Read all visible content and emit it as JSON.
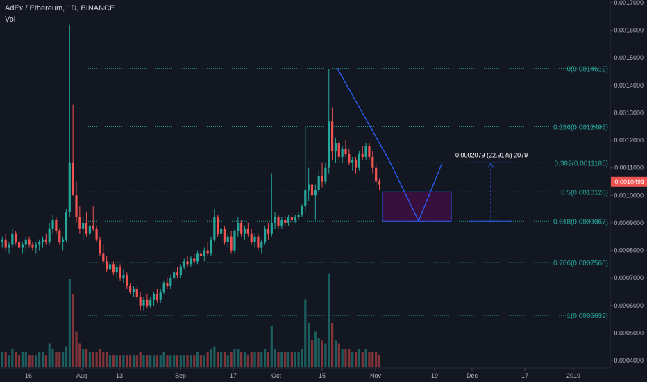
{
  "header": {
    "title": "AdEx / Ethereum, 1D, BINANCE",
    "volume_label": "Vol"
  },
  "colors": {
    "background": "#131722",
    "up": "#26a69a",
    "down": "#ef5350",
    "fib": "#26a69a",
    "pattern": "#2962ff",
    "zone_fill": "#3a1040",
    "last_price_bg": "#ef5350",
    "axis_text": "#b2b5be",
    "grid": "#1e222d"
  },
  "chart_data": {
    "type": "candlestick",
    "symbol": "AdEx / Ethereum",
    "interval": "1D",
    "exchange": "BINANCE",
    "y_ticks": [
      "0.0004000",
      "0.0005000",
      "0.0006000",
      "0.0007000",
      "0.0008000",
      "0.0009000",
      "0.0010000",
      "0.0011000",
      "0.0012000",
      "0.0013000",
      "0.0014000",
      "0.0015000",
      "0.0016000",
      "0.0017000"
    ],
    "ylim": [
      0.00036,
      0.00171
    ],
    "x_ticks": [
      "16",
      "Aug",
      "13",
      "Sep",
      "17",
      "Oct",
      "15",
      "Nov",
      "19",
      "Dec",
      "17",
      "2019"
    ],
    "last_price": "0.0010493",
    "fibonacci": [
      {
        "label": "0(0.0014612)",
        "value": 0.0014612
      },
      {
        "label": "0.236(0.0012495)",
        "value": 0.0012495
      },
      {
        "label": "0.382(0.0011185)",
        "value": 0.0011185
      },
      {
        "label": "0.5(0.0010126)",
        "value": 0.0010126
      },
      {
        "label": "0.618(0.0009067)",
        "value": 0.0009067
      },
      {
        "label": "0.786(0.0007560)",
        "value": 0.000756
      },
      {
        "label": "1(0.0005639)",
        "value": 0.0005639
      }
    ],
    "measure_label": "0.0002079 (22.91%) 2079",
    "candles": [
      [
        0.00083,
        0.00085,
        0.00081,
        0.00084,
        0.05
      ],
      [
        0.00084,
        0.00086,
        0.0008,
        0.00081,
        0.05
      ],
      [
        0.00081,
        0.00083,
        0.00079,
        0.00082,
        0.04
      ],
      [
        0.00082,
        0.00088,
        0.00081,
        0.00086,
        0.06
      ],
      [
        0.00086,
        0.00087,
        0.00082,
        0.00083,
        0.05
      ],
      [
        0.00083,
        0.00084,
        0.0008,
        0.00081,
        0.04
      ],
      [
        0.00081,
        0.00083,
        0.00079,
        0.00082,
        0.05
      ],
      [
        0.00082,
        0.00085,
        0.0008,
        0.00084,
        0.05
      ],
      [
        0.00084,
        0.00085,
        0.00081,
        0.00082,
        0.04
      ],
      [
        0.00082,
        0.00083,
        0.0008,
        0.00081,
        0.04
      ],
      [
        0.00081,
        0.00083,
        0.00079,
        0.00082,
        0.04
      ],
      [
        0.00082,
        0.00084,
        0.0008,
        0.00083,
        0.05
      ],
      [
        0.00083,
        0.00085,
        0.00081,
        0.00084,
        0.05
      ],
      [
        0.00084,
        0.00086,
        0.00082,
        0.00083,
        0.04
      ],
      [
        0.00083,
        0.0009,
        0.00082,
        0.00088,
        0.08
      ],
      [
        0.00088,
        0.00093,
        0.00086,
        0.00091,
        0.06
      ],
      [
        0.00091,
        0.00092,
        0.00086,
        0.00087,
        0.05
      ],
      [
        0.00087,
        0.00088,
        0.00082,
        0.00083,
        0.05
      ],
      [
        0.00083,
        0.00085,
        0.0008,
        0.00084,
        0.05
      ],
      [
        0.00084,
        0.00095,
        0.00083,
        0.00094,
        0.07
      ],
      [
        0.00094,
        0.00162,
        0.00092,
        0.00112,
        0.3
      ],
      [
        0.00112,
        0.00133,
        0.001,
        0.001,
        0.25
      ],
      [
        0.001,
        0.00105,
        0.0009,
        0.00092,
        0.12
      ],
      [
        0.00092,
        0.00096,
        0.00086,
        0.00088,
        0.08
      ],
      [
        0.00088,
        0.00092,
        0.00084,
        0.0009,
        0.06
      ],
      [
        0.0009,
        0.00094,
        0.00085,
        0.00086,
        0.06
      ],
      [
        0.00086,
        0.0009,
        0.00084,
        0.00089,
        0.05
      ],
      [
        0.00089,
        0.00096,
        0.00087,
        0.00088,
        0.05
      ],
      [
        0.00088,
        0.00089,
        0.00083,
        0.00084,
        0.05
      ],
      [
        0.00084,
        0.00085,
        0.00078,
        0.00079,
        0.06
      ],
      [
        0.00079,
        0.00082,
        0.00075,
        0.00076,
        0.05
      ],
      [
        0.00076,
        0.00078,
        0.00072,
        0.00073,
        0.05
      ],
      [
        0.00073,
        0.00077,
        0.00072,
        0.00075,
        0.04
      ],
      [
        0.00075,
        0.00076,
        0.00071,
        0.00072,
        0.04
      ],
      [
        0.00072,
        0.00075,
        0.0007,
        0.00074,
        0.04
      ],
      [
        0.00074,
        0.00075,
        0.00069,
        0.0007,
        0.04
      ],
      [
        0.0007,
        0.00073,
        0.00068,
        0.00071,
        0.04
      ],
      [
        0.00071,
        0.00072,
        0.00066,
        0.00067,
        0.04
      ],
      [
        0.00067,
        0.00068,
        0.00064,
        0.00065,
        0.04
      ],
      [
        0.00065,
        0.00067,
        0.00063,
        0.00066,
        0.04
      ],
      [
        0.00066,
        0.00067,
        0.00062,
        0.00063,
        0.04
      ],
      [
        0.00063,
        0.00065,
        0.00058,
        0.0006,
        0.05
      ],
      [
        0.0006,
        0.00063,
        0.00058,
        0.00062,
        0.04
      ],
      [
        0.00062,
        0.00064,
        0.00059,
        0.0006,
        0.04
      ],
      [
        0.0006,
        0.00063,
        0.00059,
        0.00062,
        0.04
      ],
      [
        0.00062,
        0.00065,
        0.0006,
        0.00064,
        0.04
      ],
      [
        0.00064,
        0.00066,
        0.00061,
        0.00062,
        0.04
      ],
      [
        0.00062,
        0.00066,
        0.00061,
        0.00065,
        0.04
      ],
      [
        0.00065,
        0.00069,
        0.00064,
        0.00068,
        0.05
      ],
      [
        0.00068,
        0.0007,
        0.00066,
        0.00067,
        0.04
      ],
      [
        0.00067,
        0.00071,
        0.00066,
        0.0007,
        0.04
      ],
      [
        0.0007,
        0.00073,
        0.00069,
        0.00072,
        0.04
      ],
      [
        0.00072,
        0.00074,
        0.0007,
        0.00071,
        0.04
      ],
      [
        0.00071,
        0.00075,
        0.0007,
        0.00074,
        0.04
      ],
      [
        0.00074,
        0.00077,
        0.00073,
        0.00076,
        0.04
      ],
      [
        0.00076,
        0.00078,
        0.00074,
        0.00075,
        0.04
      ],
      [
        0.00075,
        0.00078,
        0.00074,
        0.00077,
        0.04
      ],
      [
        0.00077,
        0.00079,
        0.00075,
        0.00076,
        0.04
      ],
      [
        0.00076,
        0.0008,
        0.00075,
        0.00079,
        0.05
      ],
      [
        0.00079,
        0.00081,
        0.00077,
        0.00078,
        0.04
      ],
      [
        0.00078,
        0.00081,
        0.00076,
        0.0008,
        0.04
      ],
      [
        0.0008,
        0.00083,
        0.00078,
        0.00079,
        0.05
      ],
      [
        0.00079,
        0.00085,
        0.00078,
        0.00084,
        0.06
      ],
      [
        0.00084,
        0.00095,
        0.00083,
        0.00092,
        0.07
      ],
      [
        0.00092,
        0.00093,
        0.00085,
        0.00086,
        0.05
      ],
      [
        0.00086,
        0.0009,
        0.00084,
        0.00088,
        0.05
      ],
      [
        0.00088,
        0.00089,
        0.00082,
        0.00083,
        0.05
      ],
      [
        0.00083,
        0.00086,
        0.00081,
        0.00085,
        0.04
      ],
      [
        0.00085,
        0.00087,
        0.00079,
        0.0008,
        0.05
      ],
      [
        0.0008,
        0.00088,
        0.00079,
        0.00087,
        0.06
      ],
      [
        0.00087,
        0.00092,
        0.00085,
        0.0009,
        0.06
      ],
      [
        0.0009,
        0.00091,
        0.00085,
        0.00086,
        0.05
      ],
      [
        0.00086,
        0.00089,
        0.00084,
        0.00088,
        0.05
      ],
      [
        0.00088,
        0.0009,
        0.00085,
        0.00086,
        0.04
      ],
      [
        0.00086,
        0.00088,
        0.00082,
        0.00083,
        0.05
      ],
      [
        0.00083,
        0.00086,
        0.00081,
        0.00085,
        0.05
      ],
      [
        0.00085,
        0.00086,
        0.0008,
        0.00081,
        0.05
      ],
      [
        0.00081,
        0.00084,
        0.00079,
        0.00083,
        0.05
      ],
      [
        0.00083,
        0.00089,
        0.00082,
        0.00088,
        0.06
      ],
      [
        0.00088,
        0.0009,
        0.00084,
        0.00086,
        0.05
      ],
      [
        0.00086,
        0.00108,
        0.00085,
        0.0009,
        0.14
      ],
      [
        0.0009,
        0.00094,
        0.00088,
        0.00092,
        0.06
      ],
      [
        0.00092,
        0.00093,
        0.00088,
        0.00089,
        0.05
      ],
      [
        0.00089,
        0.00092,
        0.00088,
        0.00091,
        0.05
      ],
      [
        0.00091,
        0.00093,
        0.00089,
        0.0009,
        0.05
      ],
      [
        0.0009,
        0.00093,
        0.00089,
        0.00092,
        0.05
      ],
      [
        0.00092,
        0.00094,
        0.0009,
        0.00091,
        0.05
      ],
      [
        0.00091,
        0.00093,
        0.0009,
        0.00092,
        0.05
      ],
      [
        0.00092,
        0.00094,
        0.00091,
        0.00093,
        0.05
      ],
      [
        0.00093,
        0.00097,
        0.00092,
        0.00096,
        0.06
      ],
      [
        0.00096,
        0.00125,
        0.00094,
        0.00102,
        0.23
      ],
      [
        0.00102,
        0.0011,
        0.00098,
        0.00104,
        0.15
      ],
      [
        0.00104,
        0.00107,
        0.00099,
        0.001,
        0.09
      ],
      [
        0.001,
        0.00104,
        0.00091,
        0.00102,
        0.12
      ],
      [
        0.00102,
        0.00109,
        0.00101,
        0.00107,
        0.1
      ],
      [
        0.00107,
        0.00112,
        0.00103,
        0.00105,
        0.09
      ],
      [
        0.00105,
        0.00112,
        0.00104,
        0.0011,
        0.08
      ],
      [
        0.0011,
        0.00146,
        0.00108,
        0.00127,
        0.32
      ],
      [
        0.00127,
        0.00132,
        0.00113,
        0.00116,
        0.15
      ],
      [
        0.00116,
        0.00121,
        0.00112,
        0.00119,
        0.09
      ],
      [
        0.00119,
        0.0012,
        0.00113,
        0.00114,
        0.08
      ],
      [
        0.00114,
        0.00118,
        0.00112,
        0.00117,
        0.06
      ],
      [
        0.00117,
        0.0012,
        0.00114,
        0.00115,
        0.06
      ],
      [
        0.00115,
        0.00117,
        0.00111,
        0.00112,
        0.06
      ],
      [
        0.00112,
        0.00114,
        0.00109,
        0.00113,
        0.05
      ],
      [
        0.00113,
        0.00114,
        0.00108,
        0.0011,
        0.05
      ],
      [
        0.0011,
        0.00116,
        0.00109,
        0.00115,
        0.06
      ],
      [
        0.00115,
        0.00118,
        0.00113,
        0.00114,
        0.05
      ],
      [
        0.00114,
        0.00119,
        0.00113,
        0.00118,
        0.06
      ],
      [
        0.00118,
        0.00119,
        0.00113,
        0.00114,
        0.05
      ],
      [
        0.00114,
        0.00116,
        0.00108,
        0.0011,
        0.05
      ],
      [
        0.0011,
        0.00112,
        0.00103,
        0.00105,
        0.05
      ],
      [
        0.00105,
        0.00106,
        0.00102,
        0.00104,
        0.04
      ]
    ]
  }
}
